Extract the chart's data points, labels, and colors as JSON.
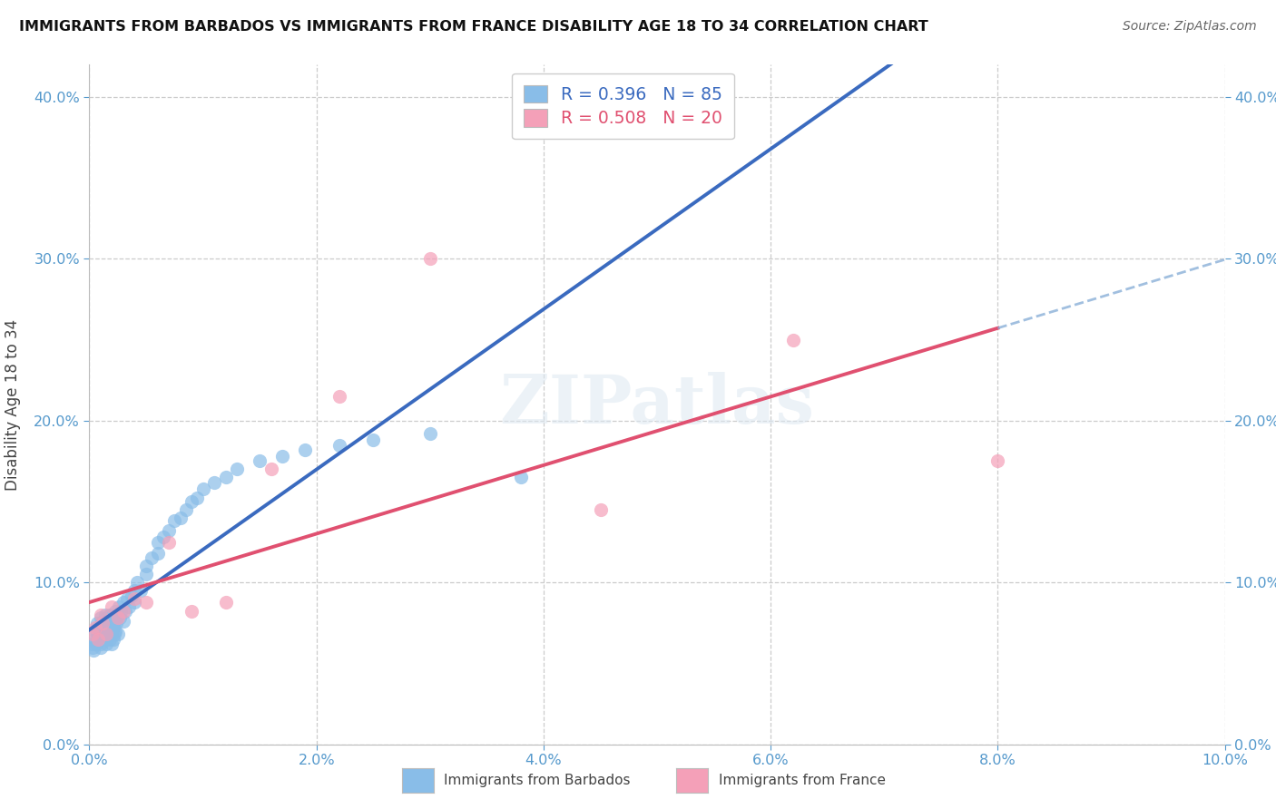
{
  "title": "IMMIGRANTS FROM BARBADOS VS IMMIGRANTS FROM FRANCE DISABILITY AGE 18 TO 34 CORRELATION CHART",
  "source": "Source: ZipAtlas.com",
  "ylabel": "Disability Age 18 to 34",
  "r_barbados": 0.396,
  "n_barbados": 85,
  "r_france": 0.508,
  "n_france": 20,
  "color_barbados": "#89bde8",
  "color_france": "#f4a0b8",
  "line_color_barbados": "#3a6abf",
  "line_color_france": "#e05070",
  "line_color_dashed": "#8ab0d8",
  "xlim": [
    0.0,
    0.1
  ],
  "ylim": [
    0.0,
    0.42
  ],
  "xticks": [
    0.0,
    0.02,
    0.04,
    0.06,
    0.08,
    0.1
  ],
  "yticks": [
    0.0,
    0.1,
    0.2,
    0.3,
    0.4
  ],
  "watermark": "ZIPatlas",
  "tick_color": "#5599cc",
  "grid_color": "#cccccc",
  "barbados_x": [
    0.0002,
    0.0003,
    0.0004,
    0.0005,
    0.0005,
    0.0006,
    0.0007,
    0.0007,
    0.0008,
    0.0009,
    0.001,
    0.001,
    0.001,
    0.001,
    0.001,
    0.001,
    0.001,
    0.0012,
    0.0012,
    0.0013,
    0.0013,
    0.0014,
    0.0014,
    0.0015,
    0.0015,
    0.0015,
    0.0015,
    0.0016,
    0.0016,
    0.0017,
    0.0017,
    0.0018,
    0.0018,
    0.0019,
    0.0019,
    0.002,
    0.002,
    0.002,
    0.002,
    0.002,
    0.0021,
    0.0021,
    0.0022,
    0.0022,
    0.0023,
    0.0023,
    0.0024,
    0.0025,
    0.0025,
    0.0026,
    0.0027,
    0.0028,
    0.003,
    0.003,
    0.0032,
    0.0033,
    0.0035,
    0.0037,
    0.004,
    0.004,
    0.0042,
    0.0045,
    0.005,
    0.005,
    0.0055,
    0.006,
    0.006,
    0.0065,
    0.007,
    0.0075,
    0.008,
    0.0085,
    0.009,
    0.0095,
    0.01,
    0.011,
    0.012,
    0.013,
    0.015,
    0.017,
    0.019,
    0.022,
    0.025,
    0.03,
    0.038
  ],
  "barbados_y": [
    0.062,
    0.06,
    0.058,
    0.065,
    0.07,
    0.062,
    0.068,
    0.075,
    0.072,
    0.064,
    0.062,
    0.068,
    0.074,
    0.06,
    0.078,
    0.065,
    0.072,
    0.07,
    0.076,
    0.065,
    0.068,
    0.075,
    0.08,
    0.065,
    0.07,
    0.062,
    0.078,
    0.068,
    0.074,
    0.07,
    0.076,
    0.065,
    0.08,
    0.068,
    0.075,
    0.062,
    0.068,
    0.074,
    0.08,
    0.078,
    0.065,
    0.072,
    0.068,
    0.076,
    0.07,
    0.082,
    0.075,
    0.068,
    0.08,
    0.085,
    0.078,
    0.082,
    0.076,
    0.088,
    0.082,
    0.09,
    0.085,
    0.092,
    0.088,
    0.095,
    0.1,
    0.095,
    0.11,
    0.105,
    0.115,
    0.118,
    0.125,
    0.128,
    0.132,
    0.138,
    0.14,
    0.145,
    0.15,
    0.152,
    0.158,
    0.162,
    0.165,
    0.17,
    0.175,
    0.178,
    0.182,
    0.185,
    0.188,
    0.192,
    0.165
  ],
  "france_x": [
    0.0003,
    0.0005,
    0.0008,
    0.001,
    0.0012,
    0.0015,
    0.002,
    0.0025,
    0.003,
    0.004,
    0.005,
    0.007,
    0.009,
    0.012,
    0.016,
    0.022,
    0.03,
    0.045,
    0.062,
    0.08
  ],
  "france_y": [
    0.068,
    0.072,
    0.065,
    0.08,
    0.075,
    0.068,
    0.085,
    0.078,
    0.082,
    0.09,
    0.088,
    0.125,
    0.082,
    0.088,
    0.17,
    0.215,
    0.3,
    0.145,
    0.25,
    0.175
  ]
}
